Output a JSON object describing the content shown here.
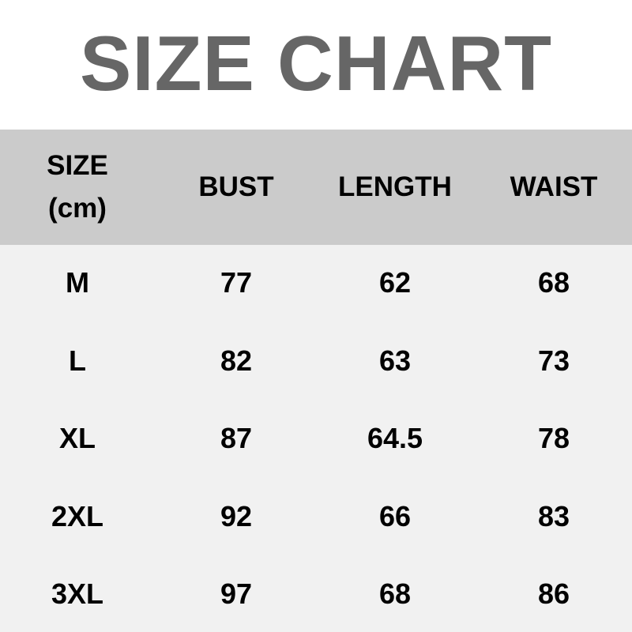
{
  "title": "SIZE CHART",
  "header": {
    "size_line1": "SIZE",
    "size_line2": "(cm)",
    "columns": [
      "BUST",
      "LENGTH",
      "WAIST"
    ]
  },
  "rows": [
    [
      "M",
      "77",
      "62",
      "68"
    ],
    [
      "L",
      "82",
      "63",
      "73"
    ],
    [
      "XL",
      "87",
      "64.5",
      "78"
    ],
    [
      "2XL",
      "92",
      "66",
      "83"
    ],
    [
      "3XL",
      "97",
      "68",
      "86"
    ]
  ],
  "colors": {
    "title": "#666666",
    "header_bg": "#cbcbcb",
    "body_bg": "#f1f1f1"
  }
}
